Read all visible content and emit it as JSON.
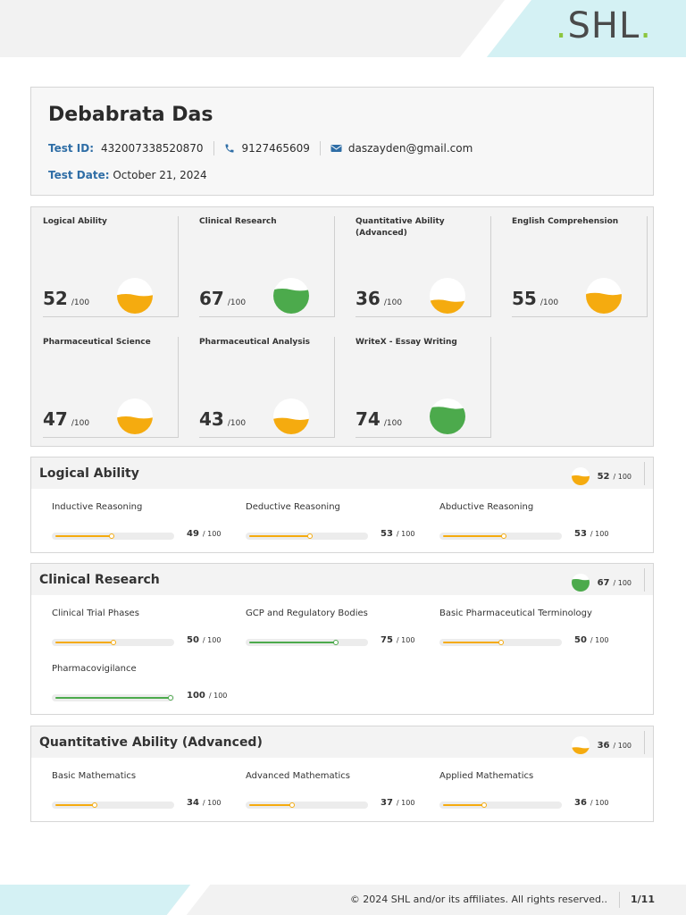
{
  "brand": {
    "logo_text": "SHL",
    "logo_dot_left": ".",
    "logo_dot_right": ".",
    "logo_dot_color": "#8cc63f"
  },
  "candidate": {
    "name": "Debabrata Das",
    "test_id_label": "Test ID:",
    "test_id": "432007338520870",
    "phone": "9127465609",
    "email": "daszayden@gmail.com",
    "test_date_label": "Test Date:",
    "test_date": "October 21, 2024"
  },
  "colors": {
    "orange": "#f5ab0f",
    "green": "#4caa4c",
    "accent_blue": "#2f6ea6"
  },
  "score_suffix": "/100",
  "score_cards": [
    {
      "title": "Logical Ability",
      "score": "52",
      "level": 0.52,
      "color": "orange",
      "icon": "gauge-icon"
    },
    {
      "title": "Clinical Research",
      "score": "67",
      "level": 0.67,
      "color": "green",
      "icon": "gauge-icon"
    },
    {
      "title": "Quantitative Ability (Advanced)",
      "score": "36",
      "level": 0.36,
      "color": "orange",
      "icon": "gauge-icon"
    },
    {
      "title": "English Comprehension",
      "score": "55",
      "level": 0.55,
      "color": "orange",
      "icon": "gauge-icon"
    },
    {
      "title": "Pharmaceutical Science",
      "score": "47",
      "level": 0.47,
      "color": "orange",
      "icon": "gauge-icon"
    },
    {
      "title": "Pharmaceutical Analysis",
      "score": "43",
      "level": 0.43,
      "color": "orange",
      "icon": "gauge-icon"
    },
    {
      "title": "WriteX - Essay Writing",
      "score": "74",
      "level": 0.74,
      "color": "green",
      "icon": "gauge-icon"
    }
  ],
  "section_suffix": "/ 100",
  "sections": [
    {
      "title": "Logical Ability",
      "score": "52",
      "level": 0.52,
      "color": "orange",
      "subs": [
        {
          "name": "Inductive Reasoning",
          "score": "49",
          "level": 0.49,
          "color": "orange"
        },
        {
          "name": "Deductive Reasoning",
          "score": "53",
          "level": 0.53,
          "color": "orange"
        },
        {
          "name": "Abductive Reasoning",
          "score": "53",
          "level": 0.53,
          "color": "orange"
        }
      ]
    },
    {
      "title": "Clinical Research",
      "score": "67",
      "level": 0.67,
      "color": "green",
      "subs": [
        {
          "name": "Clinical Trial Phases",
          "score": "50",
          "level": 0.5,
          "color": "orange"
        },
        {
          "name": "GCP and Regulatory Bodies",
          "score": "75",
          "level": 0.75,
          "color": "green"
        },
        {
          "name": "Basic Pharmaceutical Terminology",
          "score": "50",
          "level": 0.5,
          "color": "orange"
        },
        {
          "name": "Pharmacovigilance",
          "score": "100",
          "level": 1.0,
          "color": "green"
        }
      ]
    },
    {
      "title": "Quantitative Ability (Advanced)",
      "score": "36",
      "level": 0.36,
      "color": "orange",
      "subs": [
        {
          "name": "Basic Mathematics",
          "score": "34",
          "level": 0.34,
          "color": "orange"
        },
        {
          "name": "Advanced Mathematics",
          "score": "37",
          "level": 0.37,
          "color": "orange"
        },
        {
          "name": "Applied Mathematics",
          "score": "36",
          "level": 0.36,
          "color": "orange"
        }
      ]
    }
  ],
  "footer": {
    "copyright": "© 2024 SHL and/or its affiliates. All rights reserved..",
    "page": "1/11"
  }
}
